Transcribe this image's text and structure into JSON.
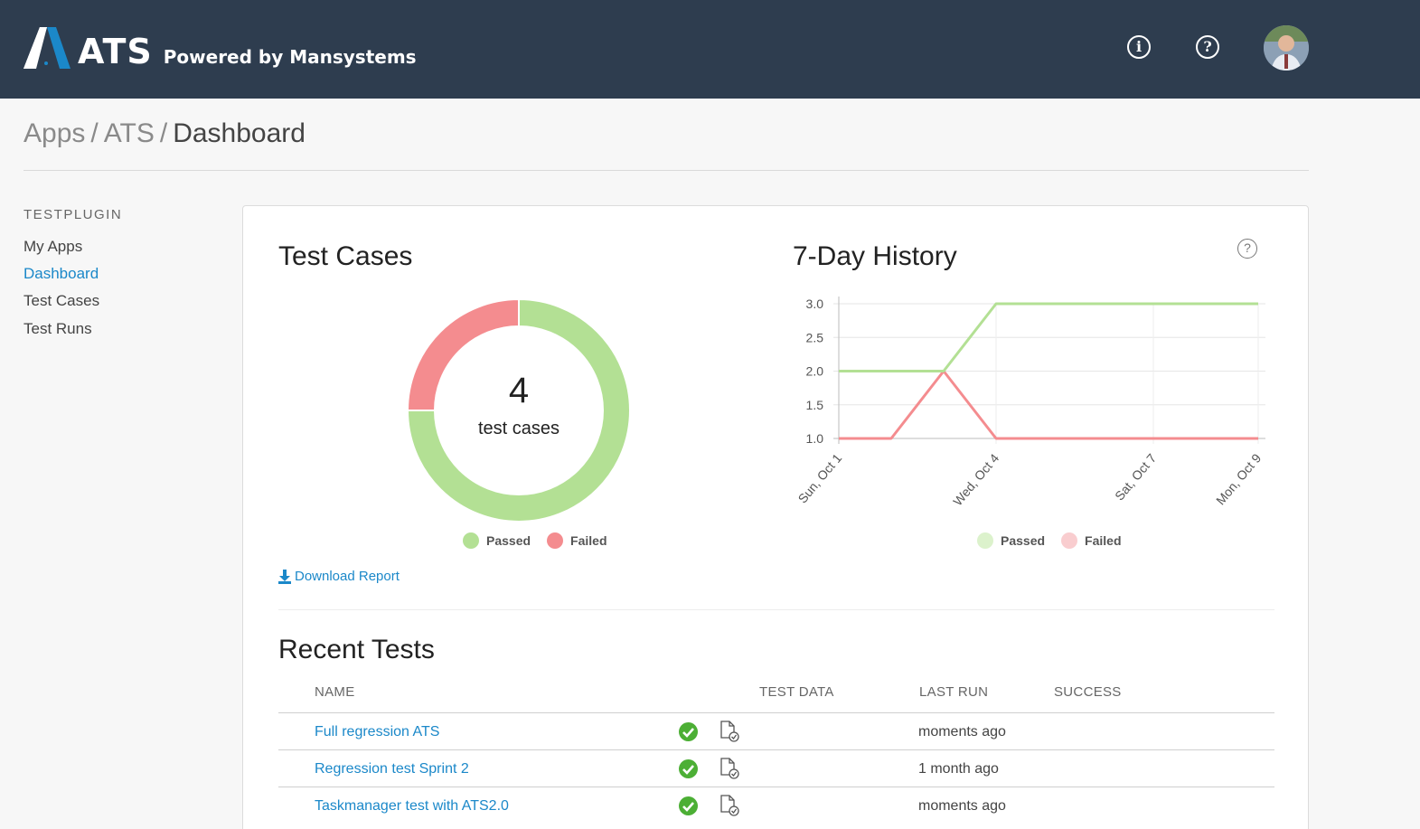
{
  "header": {
    "logo_text": "ATS",
    "logo_subtitle": "Powered by Mansystems",
    "info_icon": "info-icon",
    "help_icon": "help-icon",
    "avatar_icon": "user-avatar"
  },
  "breadcrumb": {
    "items": [
      "Apps",
      "ATS",
      "Dashboard"
    ],
    "separator": "/"
  },
  "sidebar": {
    "title": "TESTPLUGIN",
    "items": [
      {
        "label": "My Apps",
        "active": false
      },
      {
        "label": "Dashboard",
        "active": true
      },
      {
        "label": "Test Cases",
        "active": false
      },
      {
        "label": "Test Runs",
        "active": false
      }
    ]
  },
  "test_cases": {
    "title": "Test Cases",
    "count": "4",
    "caption": "test cases",
    "legend": [
      "Passed",
      "Failed"
    ],
    "download_label": "Download Report"
  },
  "history": {
    "title": "7-Day History",
    "legend": [
      "Passed",
      "Failed"
    ]
  },
  "colors": {
    "passed": "#b3e094",
    "failed": "#f48c8f",
    "link": "#1b88c9",
    "header_bg": "#2e3d4f",
    "success_icon": "#4caf35"
  },
  "chart_data": [
    {
      "type": "pie",
      "title": "Test Cases",
      "labels": [
        "Passed",
        "Failed"
      ],
      "values": [
        3,
        1
      ],
      "colors": [
        "#b3e094",
        "#f48c8f"
      ],
      "legend_position": "bottom"
    },
    {
      "type": "line",
      "title": "7-Day History",
      "x": [
        "Sun, Oct 1",
        "Mon, Oct 2",
        "Tue, Oct 3",
        "Wed, Oct 4",
        "Thu, Oct 5",
        "Fri, Oct 6",
        "Sat, Oct 7",
        "Sun, Oct 8",
        "Mon, Oct 9"
      ],
      "x_tick_labels": [
        "Sun, Oct 1",
        "Wed, Oct 4",
        "Sat, Oct 7",
        "Mon, Oct 9"
      ],
      "series": [
        {
          "name": "Passed",
          "color": "#b3e094",
          "values": [
            2,
            2,
            2,
            3,
            3,
            3,
            3,
            3,
            3
          ]
        },
        {
          "name": "Failed",
          "color": "#f48c8f",
          "values": [
            1,
            1,
            2,
            1,
            1,
            1,
            1,
            1,
            1
          ]
        }
      ],
      "y_ticks": [
        "1.0",
        "1.5",
        "2.0",
        "2.5",
        "3.0"
      ],
      "ylim": [
        1.0,
        3.0
      ],
      "grid": true,
      "legend_position": "bottom"
    }
  ],
  "recent_tests": {
    "title": "Recent Tests",
    "columns": [
      "NAME",
      "TEST DATA",
      "LAST RUN",
      "SUCCESS"
    ],
    "rows": [
      {
        "name": "Full regression ATS",
        "last_run": "moments ago",
        "status_icon": "success-check-icon",
        "data_icon": "test-data-document-icon"
      },
      {
        "name": "Regression test Sprint 2",
        "last_run": "1 month ago",
        "status_icon": "success-check-icon",
        "data_icon": "test-data-document-icon"
      },
      {
        "name": "Taskmanager test with ATS2.0",
        "last_run": "moments ago",
        "status_icon": "success-check-icon",
        "data_icon": "test-data-document-icon"
      }
    ]
  }
}
